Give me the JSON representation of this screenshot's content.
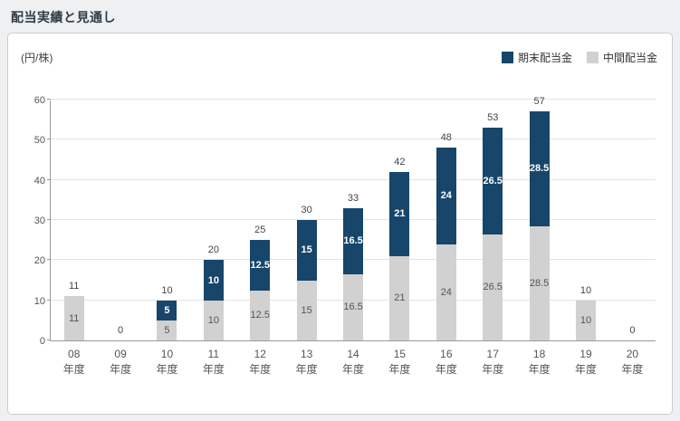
{
  "page": {
    "title": "配当実績と見通し"
  },
  "chart": {
    "unit_label": "(円/株)",
    "legend": [
      {
        "label": "期末配当金",
        "color": "#17466a"
      },
      {
        "label": "中間配当金",
        "color": "#d1d1d1"
      }
    ]
  },
  "chart_data": {
    "type": "bar",
    "stacked": true,
    "title": "配当実績と見通し",
    "ylabel": "(円/株)",
    "ylim": [
      0,
      60
    ],
    "yticks": [
      0,
      10,
      20,
      30,
      40,
      50,
      60
    ],
    "grid": true,
    "legend_position": "top-right",
    "x_suffix": "年度",
    "categories": [
      "08",
      "09",
      "10",
      "11",
      "12",
      "13",
      "14",
      "15",
      "16",
      "17",
      "18",
      "19",
      "20"
    ],
    "series": [
      {
        "name": "中間配当金",
        "key": "interim",
        "color": "#d1d1d1",
        "label_color": "#555555",
        "label_bold": false,
        "values": [
          11,
          0,
          5,
          10,
          12.5,
          15,
          16.5,
          21,
          24,
          26.5,
          28.5,
          10,
          0
        ]
      },
      {
        "name": "期末配当金",
        "key": "final",
        "color": "#17466a",
        "label_color": "#ffffff",
        "label_bold": true,
        "values": [
          0,
          0,
          5,
          10,
          12.5,
          15,
          16.5,
          21,
          24,
          26.5,
          28.5,
          0,
          0
        ]
      }
    ],
    "totals": [
      11,
      0,
      10,
      20,
      25,
      30,
      33,
      42,
      48,
      53,
      57,
      10,
      0
    ]
  }
}
